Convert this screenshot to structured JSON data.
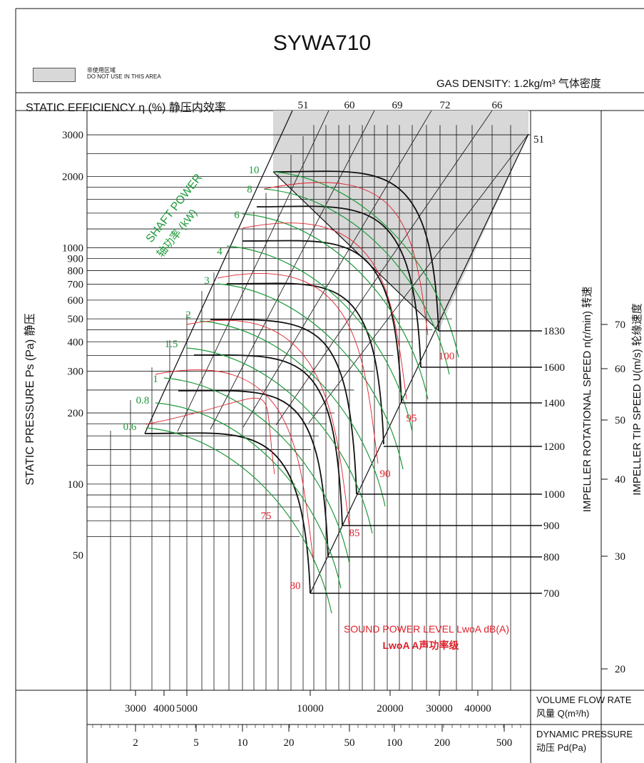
{
  "header": {
    "model": "SYWA710",
    "no_use_cn": "非使用区域",
    "no_use_en": "DO NOT USE IN THIS AREA",
    "gas_density": "GAS DENSITY: 1.2kg/m³ 气体密度",
    "efficiency_title": "STATIC EFFICIENCY η (%) 静压内效率"
  },
  "chart_data": {
    "type": "line",
    "title": "SYWA710",
    "y_axis": {
      "label": "STATIC PRESSURE Ps (Pa) 静压",
      "scale": "log",
      "range": [
        50,
        3300
      ],
      "ticks": [
        3000,
        2000,
        1000,
        900,
        800,
        700,
        600,
        500,
        400,
        300,
        200,
        100,
        50
      ]
    },
    "x_axis": {
      "label": "VOLUME FLOW RATE",
      "label_cn": "风量 Q(m³/h)",
      "scale": "log",
      "ticks": [
        3000,
        4000,
        5000,
        10000,
        20000,
        30000,
        40000
      ]
    },
    "x2_axis": {
      "label": "DYNAMIC PRESSURE",
      "label_cn": "动压 Pd(Pa)",
      "ticks": [
        2,
        5,
        10,
        20,
        50,
        100,
        200,
        500
      ]
    },
    "efficiency_ticks": [
      51,
      60,
      69,
      72,
      66
    ],
    "efficiency_right": 51,
    "shaft_power": {
      "label": "SHAFT POWER",
      "label_cn": "轴功率 (kW)",
      "values": [
        "10",
        "8",
        "6",
        "4",
        "3",
        "2",
        "1.5",
        "1",
        "0.8",
        "0.6"
      ]
    },
    "speed": {
      "label": "IMPELLER ROTATIONAL SPEED n(r/min) 转速",
      "values": [
        1830,
        1600,
        1400,
        1200,
        1000,
        900,
        800,
        700
      ]
    },
    "sound": {
      "label": "SOUND POWER LEVEL LwoA dB(A)",
      "label_cn": "LwoA A声功率级",
      "values": [
        100,
        95,
        90,
        85,
        80,
        75
      ]
    },
    "tip_speed": {
      "label": "IMPELLER TIP SPEED U(m/s) 轮缘速度",
      "ticks": [
        70,
        60,
        50,
        40,
        30,
        20
      ]
    },
    "colors": {
      "power": "#1e9a3a",
      "sound": "#e0202a",
      "speed_curve": "#111111",
      "restricted": "#d8d8d8"
    }
  }
}
